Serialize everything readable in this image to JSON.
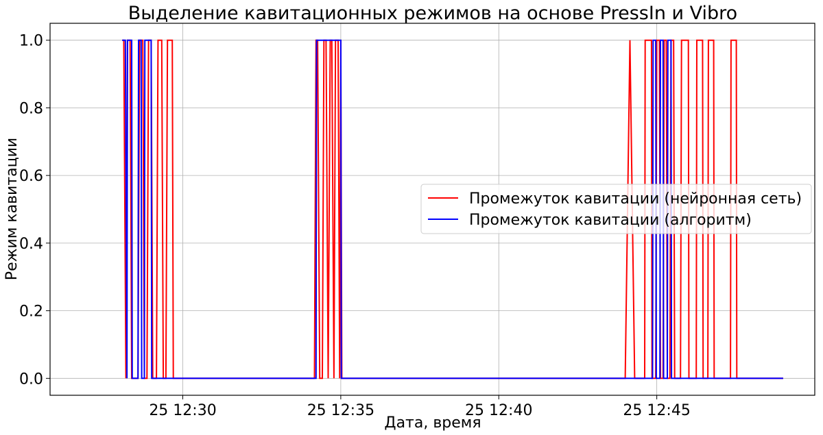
{
  "chart_data": {
    "type": "line",
    "title": "Выделение кавитационных режимов на основе PressIn и Vibro",
    "xlabel": "Дата, время",
    "ylabel": "Режим кавитации",
    "xlim": [
      "25 12:25:48",
      "25 12:50:00"
    ],
    "ylim": [
      -0.05,
      1.05
    ],
    "xticks": [
      {
        "value": "25 12:30:00",
        "label": "25 12:30"
      },
      {
        "value": "25 12:35:00",
        "label": "25 12:35"
      },
      {
        "value": "25 12:40:00",
        "label": "25 12:40"
      },
      {
        "value": "25 12:45:00",
        "label": "25 12:45"
      }
    ],
    "yticks": [
      {
        "value": 0.0,
        "label": "0.0"
      },
      {
        "value": 0.2,
        "label": "0.2"
      },
      {
        "value": 0.4,
        "label": "0.4"
      },
      {
        "value": 0.6,
        "label": "0.6"
      },
      {
        "value": 0.8,
        "label": "0.8"
      },
      {
        "value": 1.0,
        "label": "1.0"
      }
    ],
    "grid": true,
    "legend": "center-right",
    "series": [
      {
        "name": "Промежуток кавитации (нейронная сеть)",
        "color": "#ff0000",
        "x": [
          "25 12:28:05",
          "25 12:28:08",
          "25 12:28:12",
          "25 12:28:15",
          "25 12:28:20",
          "25 12:28:23",
          "25 12:28:35",
          "25 12:28:38",
          "25 12:28:44",
          "25 12:28:47",
          "25 12:28:52",
          "25 12:28:55",
          "25 12:29:00",
          "25 12:29:03",
          "25 12:29:10",
          "25 12:29:13",
          "25 12:29:20",
          "25 12:29:23",
          "25 12:29:28",
          "25 12:29:31",
          "25 12:29:40",
          "25 12:29:42",
          "25 12:29:47",
          "25 12:29:50",
          "25 12:34:10",
          "25 12:34:13",
          "25 12:34:16",
          "25 12:34:20",
          "25 12:34:25",
          "25 12:34:28",
          "25 12:34:32",
          "25 12:34:36",
          "25 12:34:40",
          "25 12:34:43",
          "25 12:34:47",
          "25 12:34:50",
          "25 12:34:55",
          "25 12:34:58",
          "25 12:35:00",
          "25 12:35:02",
          "25 12:44:00",
          "25 12:44:09",
          "25 12:44:18",
          "25 12:44:37",
          "25 12:44:38",
          "25 12:44:50",
          "25 12:44:51",
          "25 12:44:58",
          "25 12:45:00",
          "25 12:45:05",
          "25 12:45:07",
          "25 12:45:12",
          "25 12:45:14",
          "25 12:45:18",
          "25 12:45:20",
          "25 12:45:25",
          "25 12:45:27",
          "25 12:45:32",
          "25 12:45:34",
          "25 12:45:45",
          "25 12:45:47",
          "25 12:46:00",
          "25 12:46:01",
          "25 12:46:15",
          "25 12:46:16",
          "25 12:46:27",
          "25 12:46:28",
          "25 12:46:37",
          "25 12:46:38",
          "25 12:46:48",
          "25 12:46:49",
          "25 12:47:20",
          "25 12:47:21",
          "25 12:47:31",
          "25 12:47:32",
          "25 12:49:00"
        ],
        "y": [
          1,
          1,
          0,
          1,
          1,
          0,
          0,
          1,
          1,
          0,
          0,
          1,
          1,
          0,
          0,
          1,
          1,
          0,
          0,
          1,
          1,
          0,
          0,
          0,
          0,
          1,
          1,
          0,
          0,
          1,
          1,
          0,
          1,
          1,
          0,
          1,
          1,
          0,
          1,
          0,
          0,
          1,
          0,
          0,
          1,
          1,
          0,
          0,
          1,
          1,
          0,
          0,
          1,
          1,
          0,
          0,
          1,
          1,
          0,
          0,
          1,
          1,
          0,
          0,
          1,
          1,
          0,
          0,
          1,
          1,
          0,
          0,
          1,
          1,
          0,
          0
        ]
      },
      {
        "name": "Промежуток кавитации (алгоритм)",
        "color": "#0000ff",
        "x": [
          "25 12:28:05",
          "25 12:28:08",
          "25 12:28:11",
          "25 12:28:14",
          "25 12:28:15",
          "25 12:28:23",
          "25 12:28:24",
          "25 12:28:35",
          "25 12:28:36",
          "25 12:28:41",
          "25 12:28:42",
          "25 12:28:47",
          "25 12:28:48",
          "25 12:29:00",
          "25 12:29:01",
          "25 12:29:17",
          "25 12:29:18",
          "25 12:34:13",
          "25 12:34:14",
          "25 12:34:19",
          "25 12:34:20",
          "25 12:35:00",
          "25 12:35:01",
          "25 12:44:52",
          "25 12:44:53",
          "25 12:44:58",
          "25 12:44:59",
          "25 12:45:06",
          "25 12:45:07",
          "25 12:45:12",
          "25 12:45:13",
          "25 12:45:20",
          "25 12:45:21",
          "25 12:45:27",
          "25 12:45:28",
          "25 12:45:39",
          "25 12:45:40",
          "25 12:49:00"
        ],
        "y": [
          1,
          1,
          1,
          0,
          1,
          1,
          0,
          0,
          1,
          1,
          0,
          0,
          1,
          1,
          0,
          0,
          0,
          0,
          1,
          1,
          1,
          1,
          0,
          0,
          1,
          1,
          0,
          0,
          1,
          1,
          0,
          0,
          1,
          1,
          0,
          0,
          0,
          0
        ]
      }
    ]
  }
}
